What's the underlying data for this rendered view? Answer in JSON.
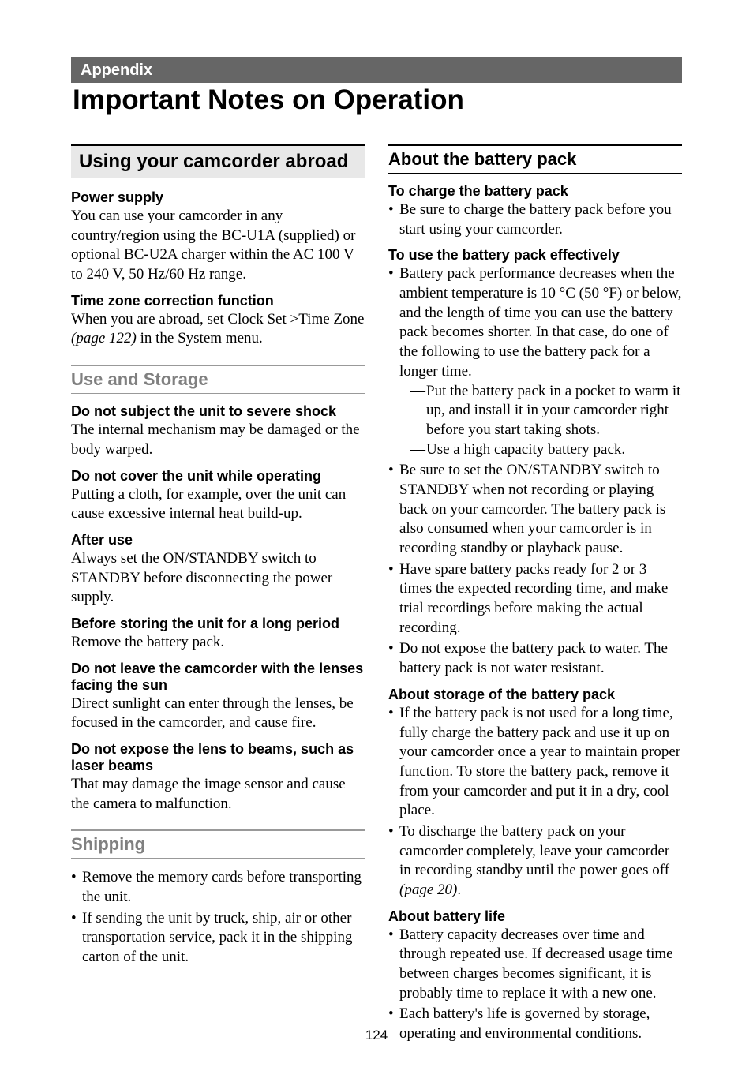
{
  "appendix_label": "Appendix",
  "main_title": "Important Notes on Operation",
  "page_number": "124",
  "left": {
    "boxed_heading": "Using your camcorder abroad",
    "power_supply": {
      "h": "Power supply",
      "p": "You can use your camcorder in any country/region using the BC-U1A (supplied) or optional BC-U2A charger within the AC 100 V to 240 V, 50 Hz/60 Hz range."
    },
    "time_zone": {
      "h": "Time zone correction function",
      "p1": "When you are abroad, set Clock Set >Time Zone ",
      "page_ref": "(page 122)",
      "p2": " in the System menu."
    },
    "use_storage": "Use and Storage",
    "shock": {
      "h": "Do not subject the unit to severe shock",
      "p": "The internal mechanism may be damaged or the body warped."
    },
    "cover": {
      "h": "Do not cover the unit while operating",
      "p": "Putting a cloth, for example, over the unit can cause excessive internal heat build-up."
    },
    "after_use": {
      "h": "After use",
      "p": "Always set the ON/STANDBY switch to STANDBY before disconnecting the power supply."
    },
    "storing": {
      "h": "Before storing the unit for a long period",
      "p": "Remove the battery pack."
    },
    "sun": {
      "h": "Do not leave the camcorder with the lenses facing the sun",
      "p": "Direct sunlight can enter through the lenses, be focused in the camcorder, and cause fire."
    },
    "laser": {
      "h": "Do not expose the lens to beams, such as laser beams",
      "p": "That may damage the image sensor and cause the camera to malfunction."
    },
    "shipping_h": "Shipping",
    "shipping_items": {
      "a": "Remove the memory cards before transporting the unit.",
      "b": "If sending the unit by truck, ship, air or other transportation service, pack it in the shipping carton of the unit."
    }
  },
  "right": {
    "battery_h": "About the battery pack",
    "charge": {
      "h": "To charge the battery pack",
      "a": "Be sure to charge the battery pack before you start using your camcorder."
    },
    "effective": {
      "h": "To use the battery pack effectively",
      "a": "Battery pack performance decreases when the ambient temperature is 10 °C (50 °F) or below, and the length of time you can use the battery pack becomes shorter. In that case, do one of the following to use the battery pack for a longer time.",
      "dash1": "Put the battery pack in a pocket to warm it up, and install it in your camcorder right before you start taking shots.",
      "dash2": "Use a high capacity battery pack.",
      "b": "Be sure to set the ON/STANDBY switch to STANDBY when not recording or playing back on your camcorder. The battery pack is also consumed when your camcorder is in recording standby or playback pause.",
      "c": "Have spare battery packs ready for 2 or 3 times the expected recording time, and make trial recordings before making the actual recording.",
      "d": "Do not expose the battery pack to water. The battery pack is not water resistant."
    },
    "storage": {
      "h": "About storage of the battery pack",
      "a": "If the battery pack is not used for a long time, fully charge the battery pack and use it up on your camcorder once a year to maintain proper function. To store the battery pack, remove it from your camcorder and put it in a dry, cool place.",
      "b1": "To discharge the battery pack on your camcorder completely, leave your camcorder in recording standby until the power goes off ",
      "b_ref": "(page 20)",
      "b2": "."
    },
    "life": {
      "h": "About battery life",
      "a": "Battery capacity decreases over time and through repeated use. If decreased usage time between charges becomes significant, it is probably time to replace it with a new one.",
      "b": "Each battery's life is governed by storage, operating and environmental conditions."
    }
  }
}
